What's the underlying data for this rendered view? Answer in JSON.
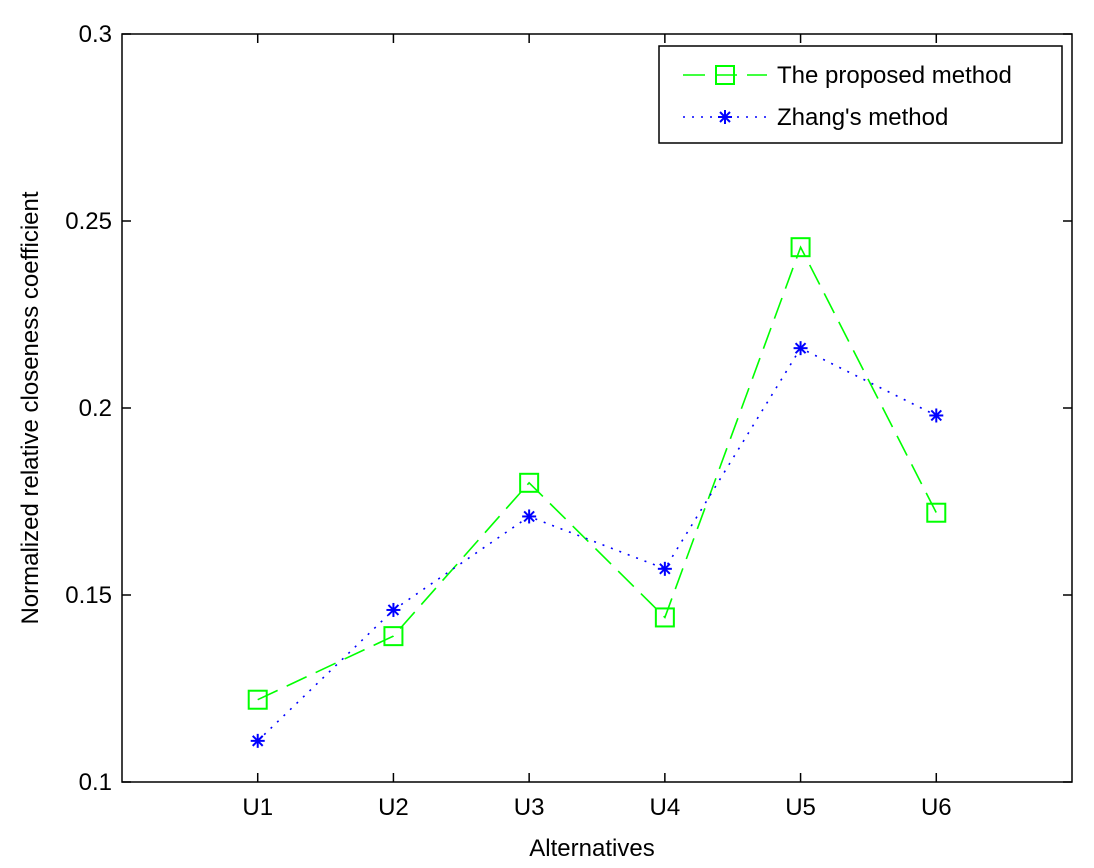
{
  "chart_data": {
    "type": "line",
    "title": "",
    "xlabel": "Alternatives",
    "ylabel": "Normalized relative closeness coefficient",
    "categories": [
      "U1",
      "U2",
      "U3",
      "U4",
      "U5",
      "U6"
    ],
    "xlim": [
      0,
      7
    ],
    "ylim": [
      0.1,
      0.3
    ],
    "yticks": [
      0.1,
      0.15,
      0.2,
      0.25,
      0.3
    ],
    "ytick_labels": [
      "0.1",
      "0.15",
      "0.2",
      "0.25",
      "0.3"
    ],
    "grid": false,
    "legend_position": "top-right",
    "series": [
      {
        "name": "The proposed method",
        "values": [
          0.122,
          0.139,
          0.18,
          0.144,
          0.243,
          0.172
        ],
        "color": "#00ff00",
        "line_style": "dashed",
        "marker": "square"
      },
      {
        "name": "Zhang's method",
        "values": [
          0.111,
          0.146,
          0.171,
          0.157,
          0.216,
          0.198
        ],
        "color": "#0000ff",
        "line_style": "dotted",
        "marker": "asterisk"
      }
    ]
  }
}
